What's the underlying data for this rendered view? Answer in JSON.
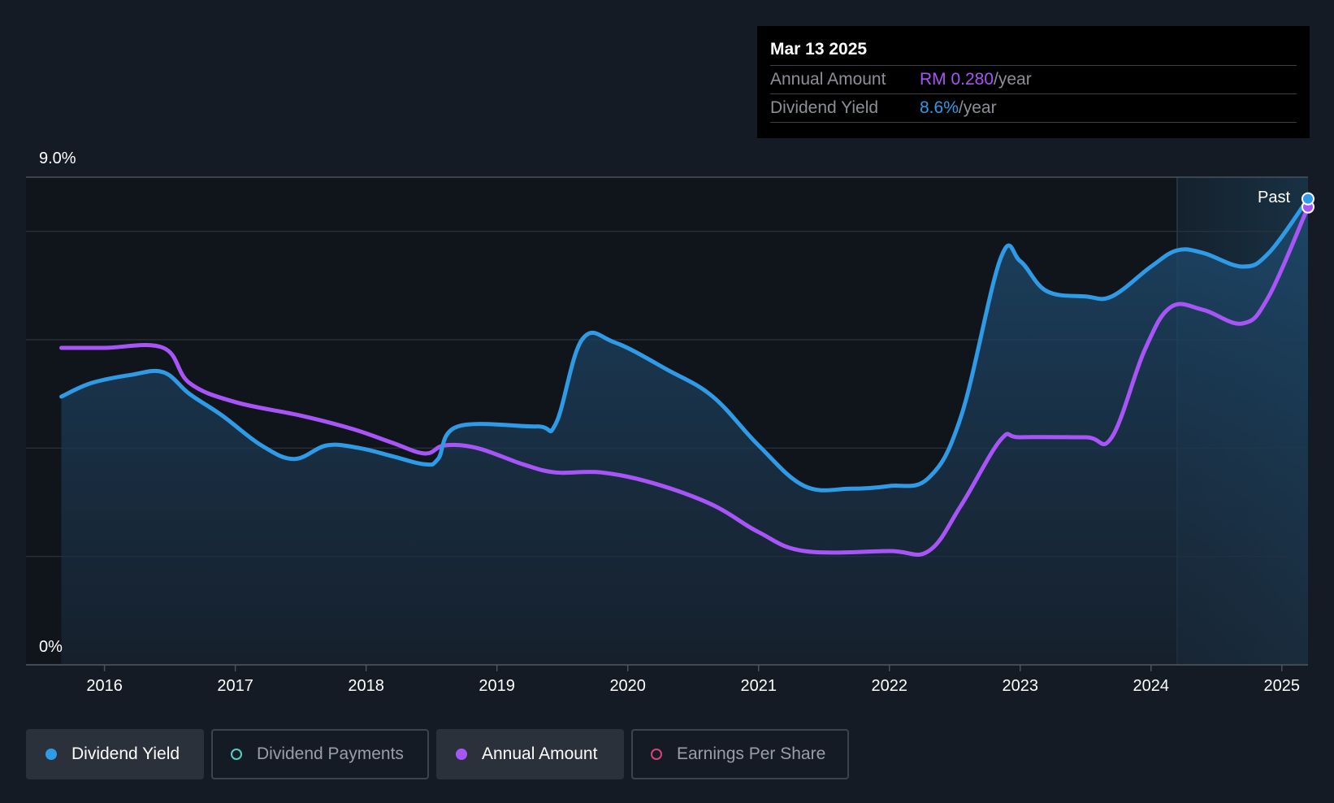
{
  "tooltip": {
    "date": "Mar 13 2025",
    "rows": [
      {
        "label": "Annual Amount",
        "value": "RM 0.280",
        "unit": "/year"
      },
      {
        "label": "Dividend Yield",
        "value": "8.6%",
        "unit": "/year"
      }
    ]
  },
  "colors": {
    "background": "#151b24",
    "dividend_yield": "#2f9be6",
    "annual_amount": "#a855f7",
    "dividend_payments": "#4fd1c5",
    "earnings_per_share": "#d6447d"
  },
  "legend": [
    {
      "label": "Dividend Yield",
      "color": "#2f9be6",
      "active": true,
      "filled": true
    },
    {
      "label": "Dividend Payments",
      "color": "#4fd1c5",
      "active": false,
      "filled": false
    },
    {
      "label": "Annual Amount",
      "color": "#a855f7",
      "active": true,
      "filled": true
    },
    {
      "label": "Earnings Per Share",
      "color": "#d6447d",
      "active": false,
      "filled": false
    }
  ],
  "chart_data": {
    "type": "line",
    "y_axis_top_label": "9.0%",
    "y_axis_bottom_label": "0%",
    "ylim": [
      0,
      9.0
    ],
    "xlim": [
      2015.4,
      2025.2
    ],
    "x_tick_labels": [
      "2016",
      "2017",
      "2018",
      "2019",
      "2020",
      "2021",
      "2022",
      "2023",
      "2024",
      "2025"
    ],
    "grid": true,
    "past_label": "Past",
    "past_region_start": 2024.2,
    "series": [
      {
        "name": "Dividend Yield",
        "unit": "%",
        "area_fill": true,
        "points": [
          [
            2015.67,
            4.95
          ],
          [
            2015.9,
            5.2
          ],
          [
            2016.2,
            5.35
          ],
          [
            2016.45,
            5.4
          ],
          [
            2016.65,
            5.0
          ],
          [
            2016.9,
            4.6
          ],
          [
            2017.2,
            4.05
          ],
          [
            2017.45,
            3.8
          ],
          [
            2017.7,
            4.05
          ],
          [
            2017.95,
            4.0
          ],
          [
            2018.2,
            3.85
          ],
          [
            2018.45,
            3.7
          ],
          [
            2018.55,
            3.8
          ],
          [
            2018.7,
            4.4
          ],
          [
            2019.3,
            4.4
          ],
          [
            2019.45,
            4.45
          ],
          [
            2019.65,
            6.0
          ],
          [
            2019.9,
            5.95
          ],
          [
            2020.3,
            5.45
          ],
          [
            2020.65,
            4.95
          ],
          [
            2021.0,
            4.05
          ],
          [
            2021.35,
            3.3
          ],
          [
            2021.7,
            3.25
          ],
          [
            2022.0,
            3.3
          ],
          [
            2022.3,
            3.45
          ],
          [
            2022.55,
            4.6
          ],
          [
            2022.85,
            7.5
          ],
          [
            2023.0,
            7.45
          ],
          [
            2023.2,
            6.9
          ],
          [
            2023.5,
            6.8
          ],
          [
            2023.7,
            6.8
          ],
          [
            2024.0,
            7.35
          ],
          [
            2024.2,
            7.65
          ],
          [
            2024.4,
            7.6
          ],
          [
            2024.7,
            7.35
          ],
          [
            2024.9,
            7.6
          ],
          [
            2025.2,
            8.6
          ]
        ]
      },
      {
        "name": "Annual Amount",
        "unit": "%",
        "area_fill": false,
        "points": [
          [
            2015.67,
            5.85
          ],
          [
            2016.0,
            5.85
          ],
          [
            2016.45,
            5.85
          ],
          [
            2016.65,
            5.2
          ],
          [
            2017.0,
            4.85
          ],
          [
            2017.5,
            4.6
          ],
          [
            2017.9,
            4.35
          ],
          [
            2018.2,
            4.1
          ],
          [
            2018.45,
            3.9
          ],
          [
            2018.6,
            4.05
          ],
          [
            2018.85,
            4.0
          ],
          [
            2019.2,
            3.7
          ],
          [
            2019.45,
            3.55
          ],
          [
            2019.8,
            3.55
          ],
          [
            2020.2,
            3.35
          ],
          [
            2020.65,
            2.95
          ],
          [
            2021.0,
            2.45
          ],
          [
            2021.35,
            2.1
          ],
          [
            2022.0,
            2.1
          ],
          [
            2022.3,
            2.1
          ],
          [
            2022.55,
            2.95
          ],
          [
            2022.85,
            4.15
          ],
          [
            2023.0,
            4.2
          ],
          [
            2023.5,
            4.2
          ],
          [
            2023.7,
            4.2
          ],
          [
            2023.95,
            5.8
          ],
          [
            2024.15,
            6.6
          ],
          [
            2024.4,
            6.55
          ],
          [
            2024.7,
            6.3
          ],
          [
            2024.9,
            6.8
          ],
          [
            2025.2,
            8.45
          ]
        ]
      }
    ]
  }
}
